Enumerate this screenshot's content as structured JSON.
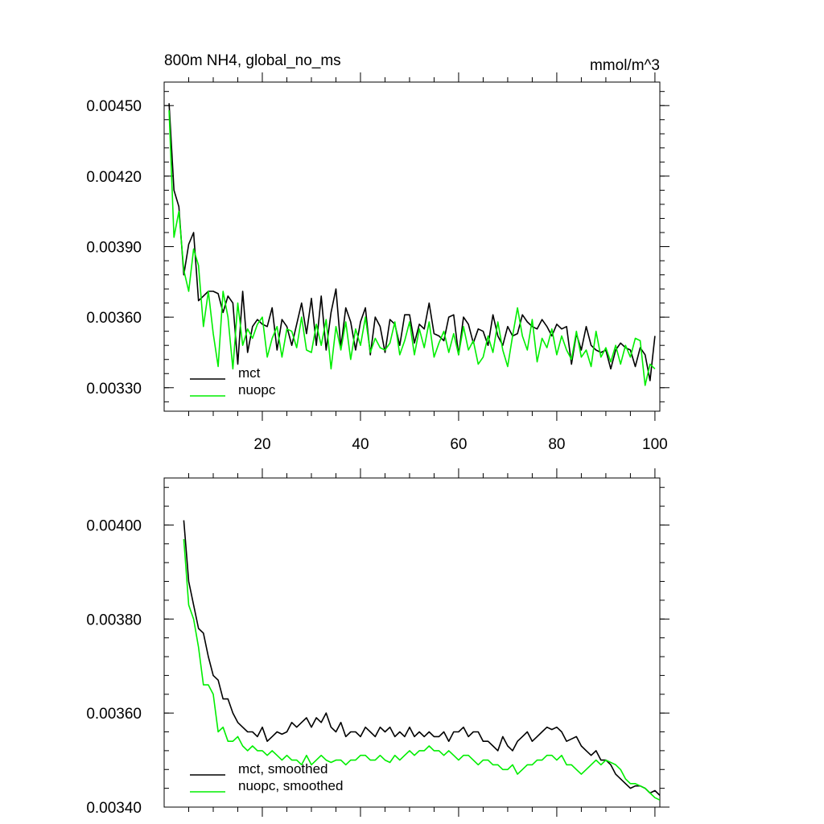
{
  "chart_data": [
    {
      "type": "line",
      "title": "800m NH4, global_no_ms",
      "units": "mmol/m^3",
      "xlim": [
        0,
        101
      ],
      "ylim": [
        0.0032,
        0.0046
      ],
      "x_ticks": [
        20,
        40,
        60,
        80,
        100
      ],
      "x_tick_labels": [
        "20",
        "40",
        "60",
        "80",
        "100"
      ],
      "y_ticks": [
        0.0033,
        0.0036,
        0.0039,
        0.0042,
        0.0045
      ],
      "y_tick_labels": [
        "0.00330",
        "0.00360",
        "0.00390",
        "0.00420",
        "0.00450"
      ],
      "legend_position": "bottom-left",
      "series": [
        {
          "name": "mct",
          "color": "#000000",
          "values": [
            0.00451,
            0.00414,
            0.00407,
            0.00378,
            0.00391,
            0.00396,
            0.00367,
            0.00369,
            0.00371,
            0.00371,
            0.0037,
            0.00362,
            0.00369,
            0.00366,
            0.0034,
            0.00371,
            0.00345,
            0.00356,
            0.00359,
            0.00357,
            0.00356,
            0.00364,
            0.00346,
            0.00359,
            0.00356,
            0.00348,
            0.00357,
            0.00366,
            0.00353,
            0.00368,
            0.00348,
            0.00369,
            0.00346,
            0.00362,
            0.00372,
            0.00347,
            0.00364,
            0.00358,
            0.00346,
            0.00358,
            0.00364,
            0.00344,
            0.0036,
            0.00356,
            0.00345,
            0.00359,
            0.00357,
            0.00348,
            0.00361,
            0.00361,
            0.00349,
            0.00357,
            0.00355,
            0.00366,
            0.00353,
            0.00352,
            0.0035,
            0.0036,
            0.00361,
            0.00344,
            0.0036,
            0.00357,
            0.00349,
            0.00355,
            0.00354,
            0.00348,
            0.00361,
            0.00352,
            0.00348,
            0.00356,
            0.00352,
            0.00353,
            0.00361,
            0.00358,
            0.00356,
            0.00355,
            0.00359,
            0.00356,
            0.00352,
            0.00357,
            0.00355,
            0.00356,
            0.0034,
            0.00353,
            0.00346,
            0.00356,
            0.00348,
            0.00346,
            0.00345,
            0.00346,
            0.00338,
            0.00346,
            0.00349,
            0.00347,
            0.00346,
            0.00339,
            0.00347,
            0.00344,
            0.00333,
            0.00352
          ]
        },
        {
          "name": "nuopc",
          "color": "#00ee00",
          "values": [
            0.00448,
            0.00394,
            0.00405,
            0.0038,
            0.00371,
            0.00389,
            0.00382,
            0.00356,
            0.00371,
            0.00353,
            0.00339,
            0.00371,
            0.0036,
            0.00338,
            0.00366,
            0.00348,
            0.00355,
            0.00351,
            0.00357,
            0.0036,
            0.00343,
            0.00351,
            0.00356,
            0.00343,
            0.00355,
            0.00354,
            0.00347,
            0.0036,
            0.00346,
            0.00345,
            0.00357,
            0.00348,
            0.00359,
            0.00338,
            0.00356,
            0.00346,
            0.00358,
            0.00342,
            0.00355,
            0.00348,
            0.0036,
            0.00345,
            0.00351,
            0.00347,
            0.00346,
            0.00349,
            0.00358,
            0.00344,
            0.0035,
            0.00358,
            0.00344,
            0.00355,
            0.00347,
            0.00358,
            0.00343,
            0.00349,
            0.00354,
            0.00345,
            0.00353,
            0.00344,
            0.00356,
            0.00346,
            0.0035,
            0.0034,
            0.00343,
            0.00352,
            0.00345,
            0.00358,
            0.00346,
            0.00339,
            0.00352,
            0.00364,
            0.00352,
            0.00346,
            0.00359,
            0.00341,
            0.00351,
            0.00347,
            0.00355,
            0.00344,
            0.00352,
            0.00346,
            0.00342,
            0.00354,
            0.00343,
            0.00346,
            0.00339,
            0.00354,
            0.00343,
            0.00347,
            0.00341,
            0.00348,
            0.0034,
            0.00348,
            0.00343,
            0.00351,
            0.0035,
            0.00331,
            0.0034,
            0.00338
          ]
        }
      ]
    },
    {
      "type": "line",
      "xlim": [
        0,
        101
      ],
      "ylim": [
        0.0034,
        0.0041
      ],
      "x_ticks": [
        20,
        40,
        60,
        80,
        100
      ],
      "x_tick_labels": [
        "",
        "",
        "",
        "",
        ""
      ],
      "y_ticks": [
        0.0034,
        0.0036,
        0.0038,
        0.004
      ],
      "y_tick_labels": [
        "0.00340",
        "0.00360",
        "0.00380",
        "0.00400"
      ],
      "legend_position": "bottom-left",
      "series": [
        {
          "name": "mct, smoothed",
          "color": "#000000",
          "x_start": 4,
          "values": [
            0.00401,
            0.00388,
            0.00383,
            0.00378,
            0.00377,
            0.00372,
            0.00368,
            0.00367,
            0.00363,
            0.00363,
            0.0036,
            0.00358,
            0.00357,
            0.00356,
            0.00356,
            0.00355,
            0.00357,
            0.00354,
            0.00355,
            0.00356,
            0.003555,
            0.00356,
            0.00358,
            0.00357,
            0.00358,
            0.00359,
            0.00357,
            0.00359,
            0.00358,
            0.0036,
            0.00357,
            0.00356,
            0.00358,
            0.00355,
            0.00356,
            0.00356,
            0.00355,
            0.00357,
            0.00356,
            0.00355,
            0.00357,
            0.00356,
            0.00357,
            0.00355,
            0.00356,
            0.00355,
            0.00357,
            0.00355,
            0.00356,
            0.00355,
            0.00356,
            0.00355,
            0.00355,
            0.00356,
            0.00354,
            0.00356,
            0.00356,
            0.00357,
            0.00355,
            0.00356,
            0.00356,
            0.00354,
            0.00354,
            0.00353,
            0.00352,
            0.00355,
            0.00353,
            0.00352,
            0.00354,
            0.00355,
            0.00356,
            0.00354,
            0.00355,
            0.00356,
            0.00357,
            0.003565,
            0.00357,
            0.00356,
            0.00354,
            0.003545,
            0.00355,
            0.00353,
            0.00352,
            0.00351,
            0.00352,
            0.0035,
            0.0035,
            0.00349,
            0.00347,
            0.00346,
            0.00345,
            0.00344,
            0.003445,
            0.003445,
            0.00344,
            0.00343,
            0.003435,
            0.003425
          ]
        },
        {
          "name": "nuopc, smoothed",
          "color": "#00ee00",
          "x_start": 4,
          "values": [
            0.00397,
            0.00383,
            0.0038,
            0.00374,
            0.00366,
            0.00366,
            0.00364,
            0.00356,
            0.00357,
            0.00354,
            0.00354,
            0.00355,
            0.00353,
            0.00352,
            0.00353,
            0.00352,
            0.00352,
            0.00351,
            0.00352,
            0.00351,
            0.0035,
            0.00351,
            0.0035,
            0.0035,
            0.00349,
            0.00351,
            0.00349,
            0.0035,
            0.00351,
            0.0035,
            0.003495,
            0.0035,
            0.0035,
            0.00349,
            0.0035,
            0.0035,
            0.00351,
            0.00351,
            0.0035,
            0.0035,
            0.00351,
            0.0035,
            0.003495,
            0.00351,
            0.0035,
            0.00351,
            0.00352,
            0.00351,
            0.00352,
            0.00352,
            0.00353,
            0.00352,
            0.00352,
            0.00351,
            0.00352,
            0.00351,
            0.0035,
            0.00351,
            0.00351,
            0.0035,
            0.00349,
            0.0035,
            0.0035,
            0.00349,
            0.00349,
            0.00348,
            0.00348,
            0.00349,
            0.00347,
            0.00348,
            0.00349,
            0.00349,
            0.0035,
            0.0035,
            0.00351,
            0.00351,
            0.0035,
            0.00351,
            0.00349,
            0.00349,
            0.00348,
            0.00347,
            0.00348,
            0.00349,
            0.0035,
            0.00349,
            0.0035,
            0.003495,
            0.00349,
            0.00348,
            0.00346,
            0.00345,
            0.00345,
            0.003445,
            0.00344,
            0.00343,
            0.00342,
            0.003415
          ]
        }
      ]
    }
  ]
}
